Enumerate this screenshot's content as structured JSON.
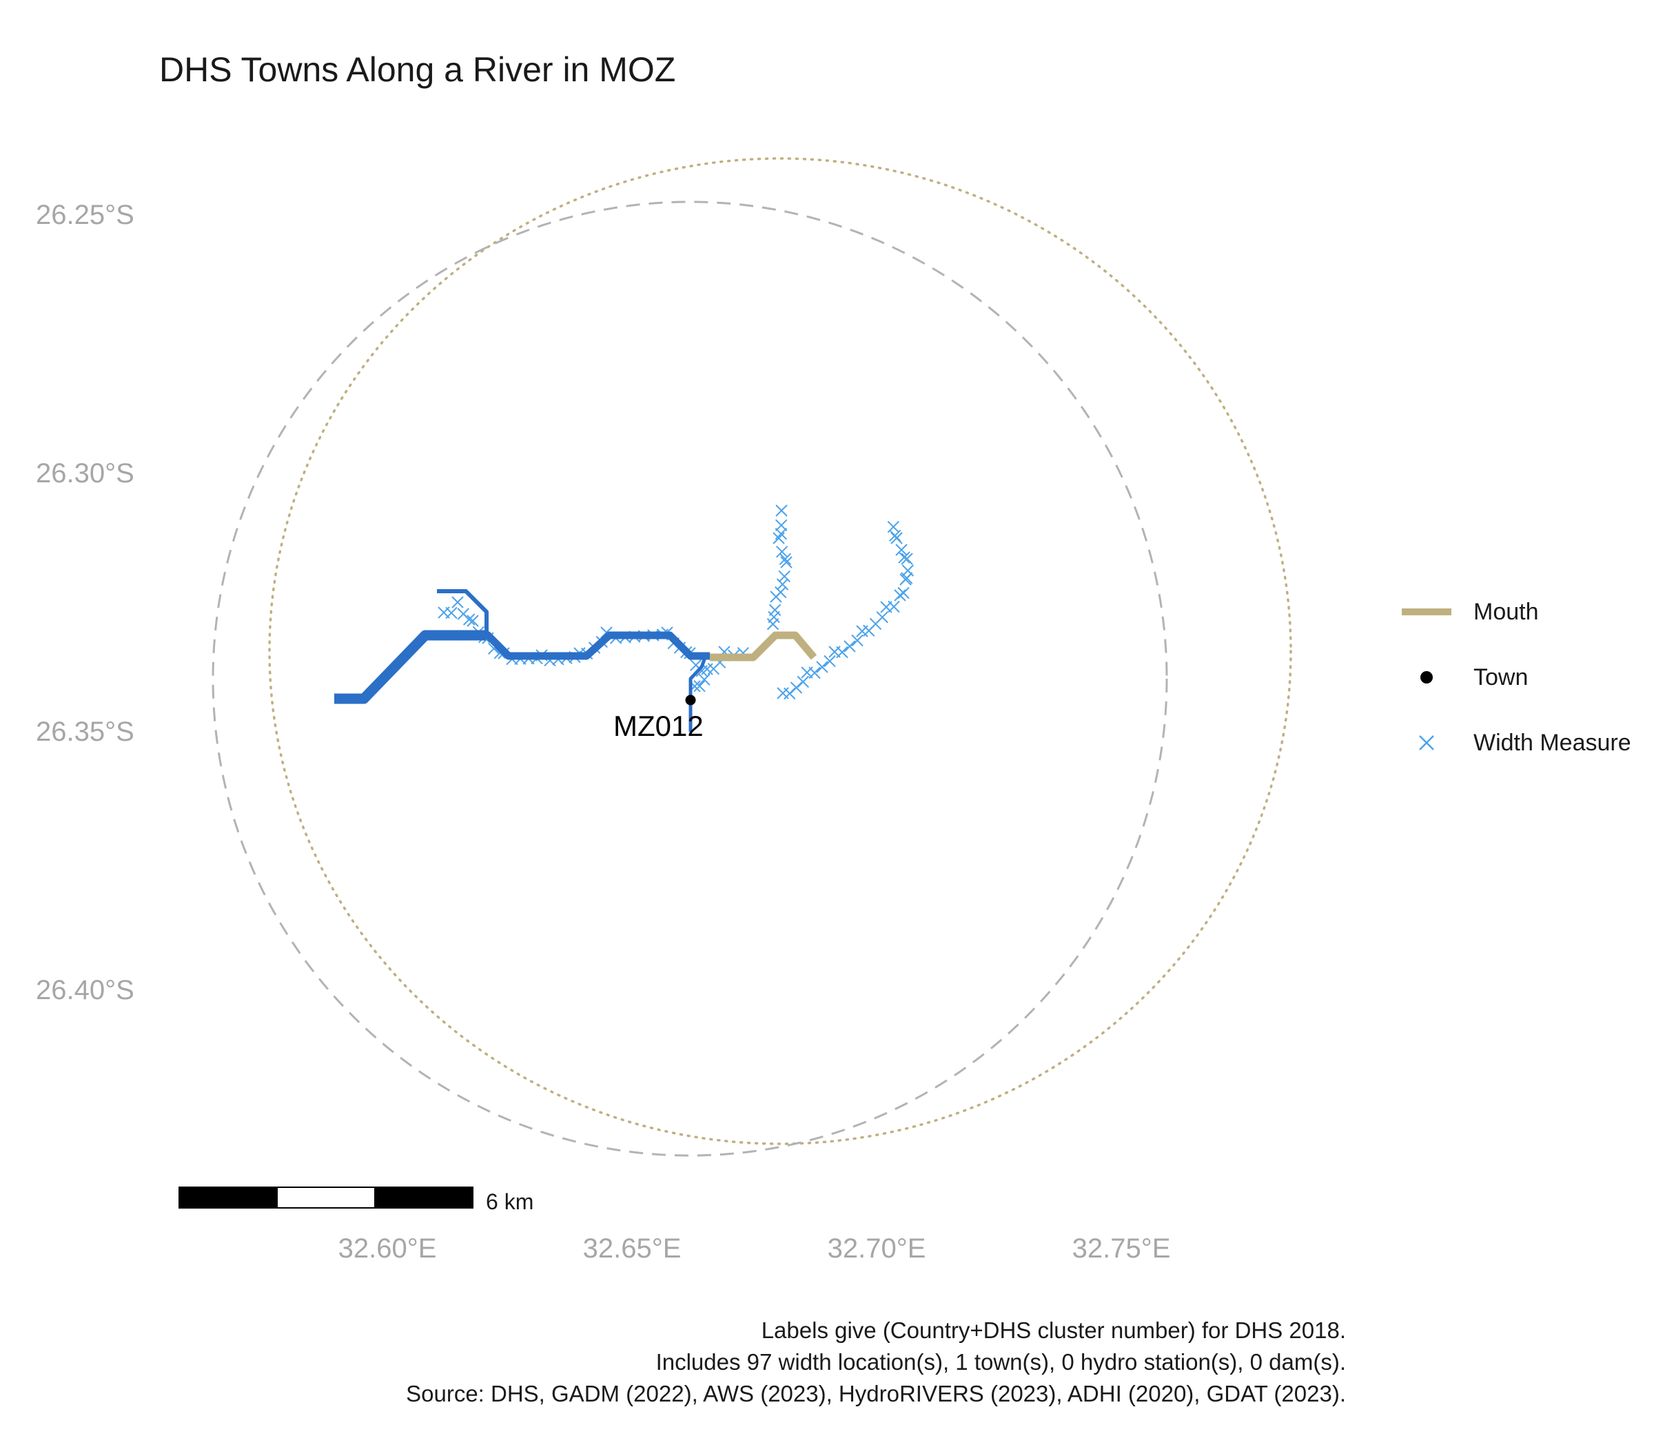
{
  "title": "DHS Towns Along a River in MOZ",
  "axes": {
    "y_ticks": [
      "26.25°S",
      "26.30°S",
      "26.35°S",
      "26.40°S"
    ],
    "x_ticks": [
      "32.60°E",
      "32.65°E",
      "32.70°E",
      "32.75°E"
    ]
  },
  "legend": {
    "items": [
      {
        "label": "Mouth",
        "icon": "mouth-line-icon",
        "color": "#bfb080"
      },
      {
        "label": "Town",
        "icon": "town-dot-icon",
        "color": "#000000"
      },
      {
        "label": "Width Measure",
        "icon": "width-cross-icon",
        "color": "#4da3ea"
      }
    ]
  },
  "scale_bar": {
    "label": "6 km"
  },
  "town": {
    "label": "MZ012",
    "lon": 32.664,
    "lat": -26.344
  },
  "caption": {
    "line1": "Labels give (Country+DHS cluster number) for DHS 2018.",
    "line2": "Includes 97 width location(s), 1 town(s), 0 hydro station(s), 0 dam(s).",
    "line3": "Source: DHS, GADM (2022), AWS (2023), HydroRIVERS (2023), ADHI (2020), GDAT (2023)."
  },
  "colors": {
    "river": "#2b6fc7",
    "mouth": "#bfb080",
    "width_measure": "#4da3ea",
    "buffer_dashed": "#b3b3b3",
    "buffer_dotted": "#bfb080"
  }
}
